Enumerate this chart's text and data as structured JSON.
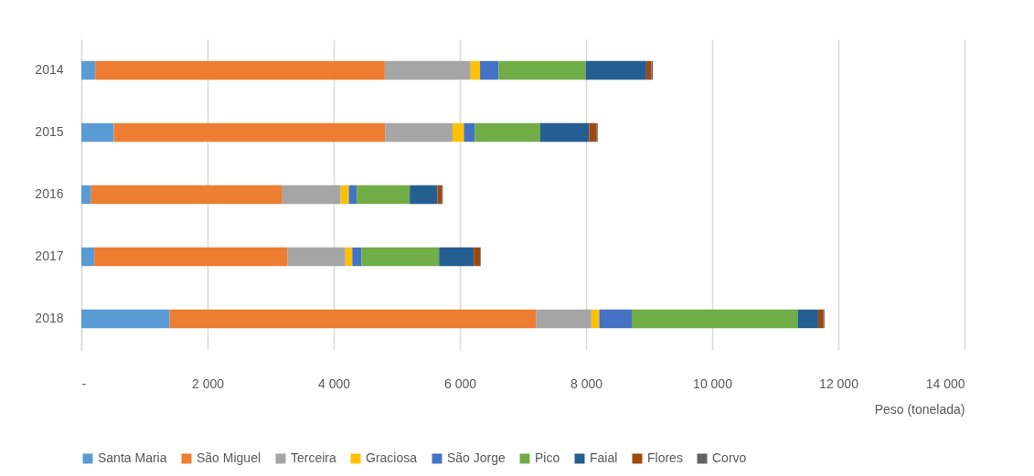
{
  "chart_data": {
    "type": "bar",
    "orientation": "horizontal",
    "stacked": true,
    "xlabel": "Peso (tonelada)",
    "categories": [
      "2014",
      "2015",
      "2016",
      "2017",
      "2018"
    ],
    "series": [
      {
        "name": "Santa Maria",
        "color": "#5b9bd5",
        "values": [
          220,
          515,
          155,
          205,
          1400
        ]
      },
      {
        "name": "São Miguel",
        "color": "#ed7d31",
        "values": [
          4590,
          4300,
          3030,
          3065,
          5805
        ]
      },
      {
        "name": "Terceira",
        "color": "#a5a5a5",
        "values": [
          1360,
          1070,
          925,
          915,
          880
        ]
      },
      {
        "name": "Graciosa",
        "color": "#ffc000",
        "values": [
          150,
          180,
          130,
          110,
          125
        ]
      },
      {
        "name": "São Jorge",
        "color": "#4472c4",
        "values": [
          295,
          170,
          125,
          145,
          515
        ]
      },
      {
        "name": "Pico",
        "color": "#70ad47",
        "values": [
          1380,
          1040,
          840,
          1230,
          2630
        ]
      },
      {
        "name": "Faial",
        "color": "#255e91",
        "values": [
          960,
          775,
          440,
          550,
          325
        ]
      },
      {
        "name": "Flores",
        "color": "#9e480e",
        "values": [
          80,
          120,
          70,
          100,
          85
        ]
      },
      {
        "name": "Corvo",
        "color": "#636363",
        "values": [
          25,
          15,
          15,
          10,
          15
        ]
      }
    ],
    "xlim": [
      0,
      14000
    ],
    "xticks": [
      {
        "value": 0,
        "label": "-"
      },
      {
        "value": 2000,
        "label": "2 000"
      },
      {
        "value": 4000,
        "label": "4 000"
      },
      {
        "value": 6000,
        "label": "6 000"
      },
      {
        "value": 8000,
        "label": "8 000"
      },
      {
        "value": 10000,
        "label": "10 000"
      },
      {
        "value": 12000,
        "label": "12 000"
      },
      {
        "value": 14000,
        "label": "14 000"
      }
    ],
    "grid": "x",
    "legend": "bottom"
  }
}
